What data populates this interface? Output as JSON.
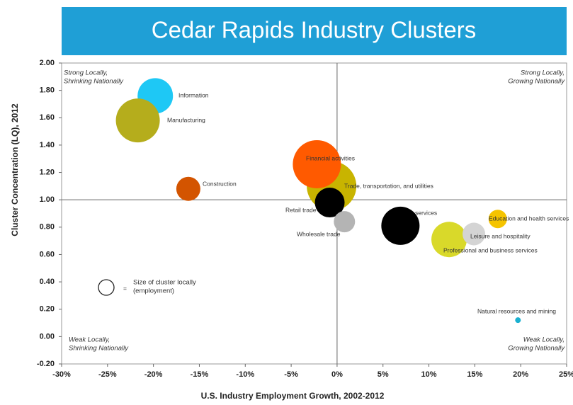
{
  "chart_data": {
    "type": "scatter",
    "title": "Cedar Rapids Industry Clusters",
    "xlabel": "U.S. Industry Employment Growth, 2002-2012",
    "ylabel": "Cluster Concentration (LQ), 2012",
    "series": [
      {
        "name": "Information",
        "color": "#1ec8f5",
        "x": [
          -19.8
        ],
        "values": [
          1.76
        ],
        "sizes": [
          625
        ]
      },
      {
        "name": "Manufacturing",
        "color": "#b5ad1c",
        "x": [
          -21.7
        ],
        "values": [
          1.58
        ],
        "sizes": [
          961
        ]
      },
      {
        "name": "Construction",
        "color": "#d35400",
        "x": [
          -16.2
        ],
        "values": [
          1.08
        ],
        "sizes": [
          289
        ]
      },
      {
        "name": "Trade, transportation, and utilities",
        "color": "#c8b400",
        "x": [
          -0.6
        ],
        "values": [
          1.1
        ],
        "sizes": [
          1225
        ]
      },
      {
        "name": "Financial activities",
        "color": "#ff5a00",
        "x": [
          -2.2
        ],
        "values": [
          1.26
        ],
        "sizes": [
          1156
        ]
      },
      {
        "name": "Retail trade",
        "color": "#000000",
        "x": [
          -0.8
        ],
        "values": [
          0.98
        ],
        "sizes": [
          441
        ]
      },
      {
        "name": "Wholesale trade",
        "color": "#b4b4b4",
        "x": [
          0.8
        ],
        "values": [
          0.84
        ],
        "sizes": [
          225
        ]
      },
      {
        "name": "services",
        "color": "#000000",
        "x": [
          6.9
        ],
        "values": [
          0.81
        ],
        "sizes": [
          729
        ]
      },
      {
        "name": "Professional and business services",
        "color": "#d9d92a",
        "x": [
          12.2
        ],
        "values": [
          0.71
        ],
        "sizes": [
          625
        ]
      },
      {
        "name": "Leisure and hospitality",
        "color": "#d4d4d4",
        "x": [
          14.9
        ],
        "values": [
          0.75
        ],
        "sizes": [
          256
        ]
      },
      {
        "name": "Education and health services",
        "color": "#f5c400",
        "x": [
          17.5
        ],
        "values": [
          0.86
        ],
        "sizes": [
          169
        ]
      },
      {
        "name": "Natural resources and mining",
        "color": "#1ab0d0",
        "x": [
          19.7
        ],
        "values": [
          0.12
        ],
        "sizes": [
          16
        ]
      }
    ],
    "xlim": [
      -30,
      25
    ],
    "xticks": [
      {
        "value": -30,
        "label": "-30%"
      },
      {
        "value": -25,
        "label": "-25%"
      },
      {
        "value": -20,
        "label": "-20%"
      },
      {
        "value": -15,
        "label": "-15%"
      },
      {
        "value": -10,
        "label": "-10%"
      },
      {
        "value": -5,
        "label": "-5%"
      },
      {
        "value": 0,
        "label": "0%"
      },
      {
        "value": 5,
        "label": "5%"
      },
      {
        "value": 10,
        "label": "10%"
      },
      {
        "value": 15,
        "label": "15%"
      },
      {
        "value": 20,
        "label": "20%"
      },
      {
        "value": 25,
        "label": "25%"
      }
    ],
    "ylim": [
      -0.2,
      2.0
    ],
    "yticks": [
      {
        "value": -0.2,
        "label": "-0.20"
      },
      {
        "value": 0,
        "label": "0.00"
      },
      {
        "value": 0.2,
        "label": "0.20"
      },
      {
        "value": 0.4,
        "label": "0.40"
      },
      {
        "value": 0.6,
        "label": "0.60"
      },
      {
        "value": 0.8,
        "label": "0.80"
      },
      {
        "value": 1,
        "label": "1.00"
      },
      {
        "value": 1.2,
        "label": "1.20"
      },
      {
        "value": 1.4,
        "label": "1.40"
      },
      {
        "value": 1.6,
        "label": "1.60"
      },
      {
        "value": 1.8,
        "label": "1.80"
      },
      {
        "value": 2,
        "label": "2.00"
      }
    ],
    "quadrant_x": 0,
    "quadrant_y": 1,
    "quadrant_labels": {
      "top_left": [
        "Strong Locally,",
        "Shrinking Nationally"
      ],
      "top_right": [
        "Strong Locally,",
        "Growing Nationally"
      ],
      "bottom_left": [
        "Weak Locally,",
        "Shrinking Nationally"
      ],
      "bottom_right": [
        "Weak Locally,",
        "Growing Nationally"
      ]
    },
    "size_legend": {
      "symbol": "=",
      "text": [
        "Size of cluster locally",
        "(employment)"
      ]
    }
  }
}
